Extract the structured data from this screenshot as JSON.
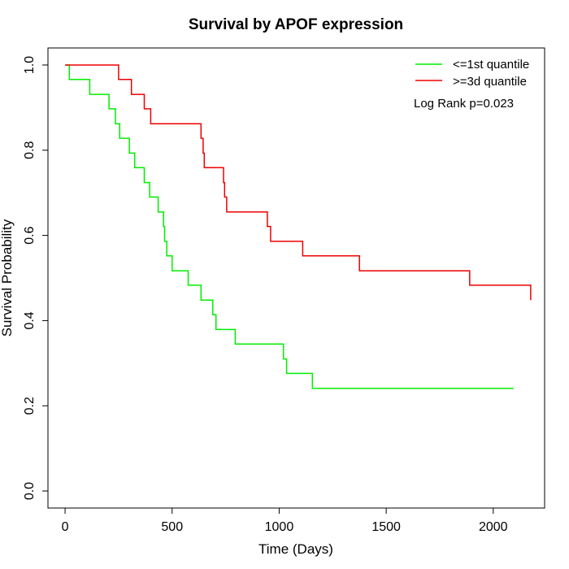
{
  "chart_data": {
    "type": "line",
    "step": true,
    "title": "Survival by APOF expression",
    "xlabel": "Time (Days)",
    "ylabel": "Survival Probability",
    "xlim": [
      -80,
      2240
    ],
    "ylim": [
      -0.04,
      1.04
    ],
    "x_ticks": [
      0,
      500,
      1000,
      1500,
      2000
    ],
    "y_ticks": [
      0.0,
      0.2,
      0.4,
      0.6,
      0.8,
      1.0
    ],
    "x_tick_labels": [
      "0",
      "500",
      "1000",
      "1500",
      "2000"
    ],
    "y_tick_labels": [
      "0.0",
      "0.2",
      "0.4",
      "0.6",
      "0.8",
      "1.0"
    ],
    "grid": false,
    "legend_position": "top-right",
    "annotation": "Log Rank p=0.023",
    "series": [
      {
        "name": "<=1st quantile",
        "color": "#00ee00",
        "x": [
          0,
          20,
          115,
          205,
          235,
          255,
          300,
          325,
          370,
          395,
          435,
          460,
          465,
          475,
          500,
          575,
          635,
          690,
          705,
          795,
          1020,
          1035,
          1155,
          2095
        ],
        "y": [
          1.0,
          0.966,
          0.931,
          0.897,
          0.862,
          0.828,
          0.793,
          0.759,
          0.724,
          0.69,
          0.655,
          0.621,
          0.586,
          0.552,
          0.517,
          0.483,
          0.448,
          0.414,
          0.379,
          0.345,
          0.31,
          0.276,
          0.241,
          0.241
        ]
      },
      {
        "name": ">=3d quantile",
        "color": "#ee0000",
        "x": [
          0,
          250,
          310,
          370,
          400,
          635,
          645,
          650,
          740,
          745,
          755,
          945,
          960,
          1110,
          1375,
          1890,
          2175
        ],
        "y": [
          1.0,
          0.966,
          0.931,
          0.897,
          0.862,
          0.828,
          0.793,
          0.759,
          0.724,
          0.69,
          0.655,
          0.621,
          0.586,
          0.552,
          0.517,
          0.483,
          0.448
        ]
      }
    ]
  }
}
